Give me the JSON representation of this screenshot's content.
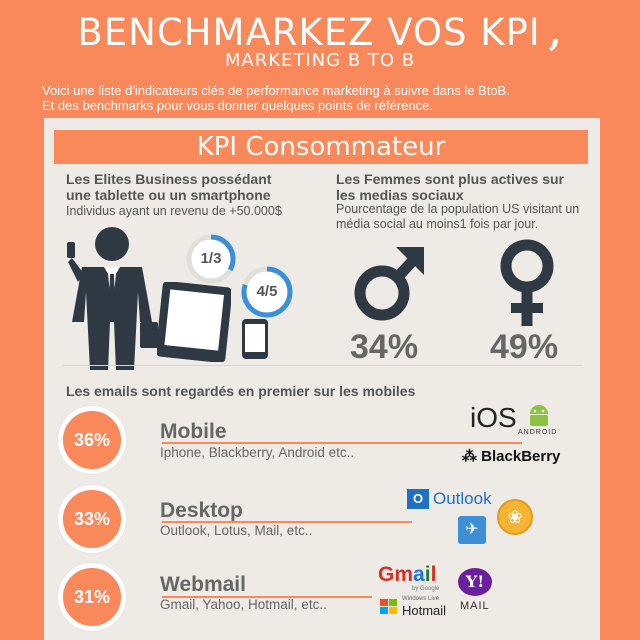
{
  "header": {
    "title": "BENCHMARKEZ VOS KPI",
    "subtitle": "MARKETING B TO B",
    "intro_line1": "Voici une liste d'indicateurs clés de performance marketing à suivre dans le BtoB.",
    "intro_line2": "Et des benchmarks pour vous donner quelques points de référence."
  },
  "section_banner": "KPI Consommateur",
  "elites": {
    "title_line1": "Les Elites Business possédant",
    "title_line2": "une tablette ou un smartphone",
    "desc": "Individus ayant un revenu de +50.000$",
    "tablet_ratio": "1/3",
    "tablet_fraction": 0.333,
    "smartphone_ratio": "4/5",
    "smartphone_fraction": 0.8,
    "ring_color": "#3b8fd9"
  },
  "women": {
    "title_line1": "Les Femmes sont plus actives sur",
    "title_line2": "les medias sociaux",
    "desc_line1": "Pourcentage de la population US visitant un",
    "desc_line2": "média social au moins1 fois par jour.",
    "male_pct": "34%",
    "female_pct": "49%"
  },
  "emails": {
    "title": "Les emails sont regardés en premier sur les mobiles",
    "items": [
      {
        "pct": "36%",
        "label": "Mobile",
        "desc": "Iphone, Blackberry, Android etc.."
      },
      {
        "pct": "33%",
        "label": "Desktop",
        "desc": "Outlook, Lotus, Mail, etc.."
      },
      {
        "pct": "31%",
        "label": "Webmail",
        "desc": "Gmail, Yahoo, Hotmail, etc.."
      }
    ]
  },
  "logos": {
    "ios": "iOS",
    "android": "ANDROID",
    "blackberry": "BlackBerry",
    "outlook": "Outlook",
    "gmail": "Gmail",
    "yahoo": "Y!",
    "yahoo_mail": "MAIL",
    "windows_live": "Windows Live",
    "hotmail": "Hotmail",
    "google_by": "by Google"
  },
  "colors": {
    "accent": "#f9885a",
    "panel": "#eeebe6",
    "text": "#555555",
    "ring": "#3b8fd9"
  }
}
